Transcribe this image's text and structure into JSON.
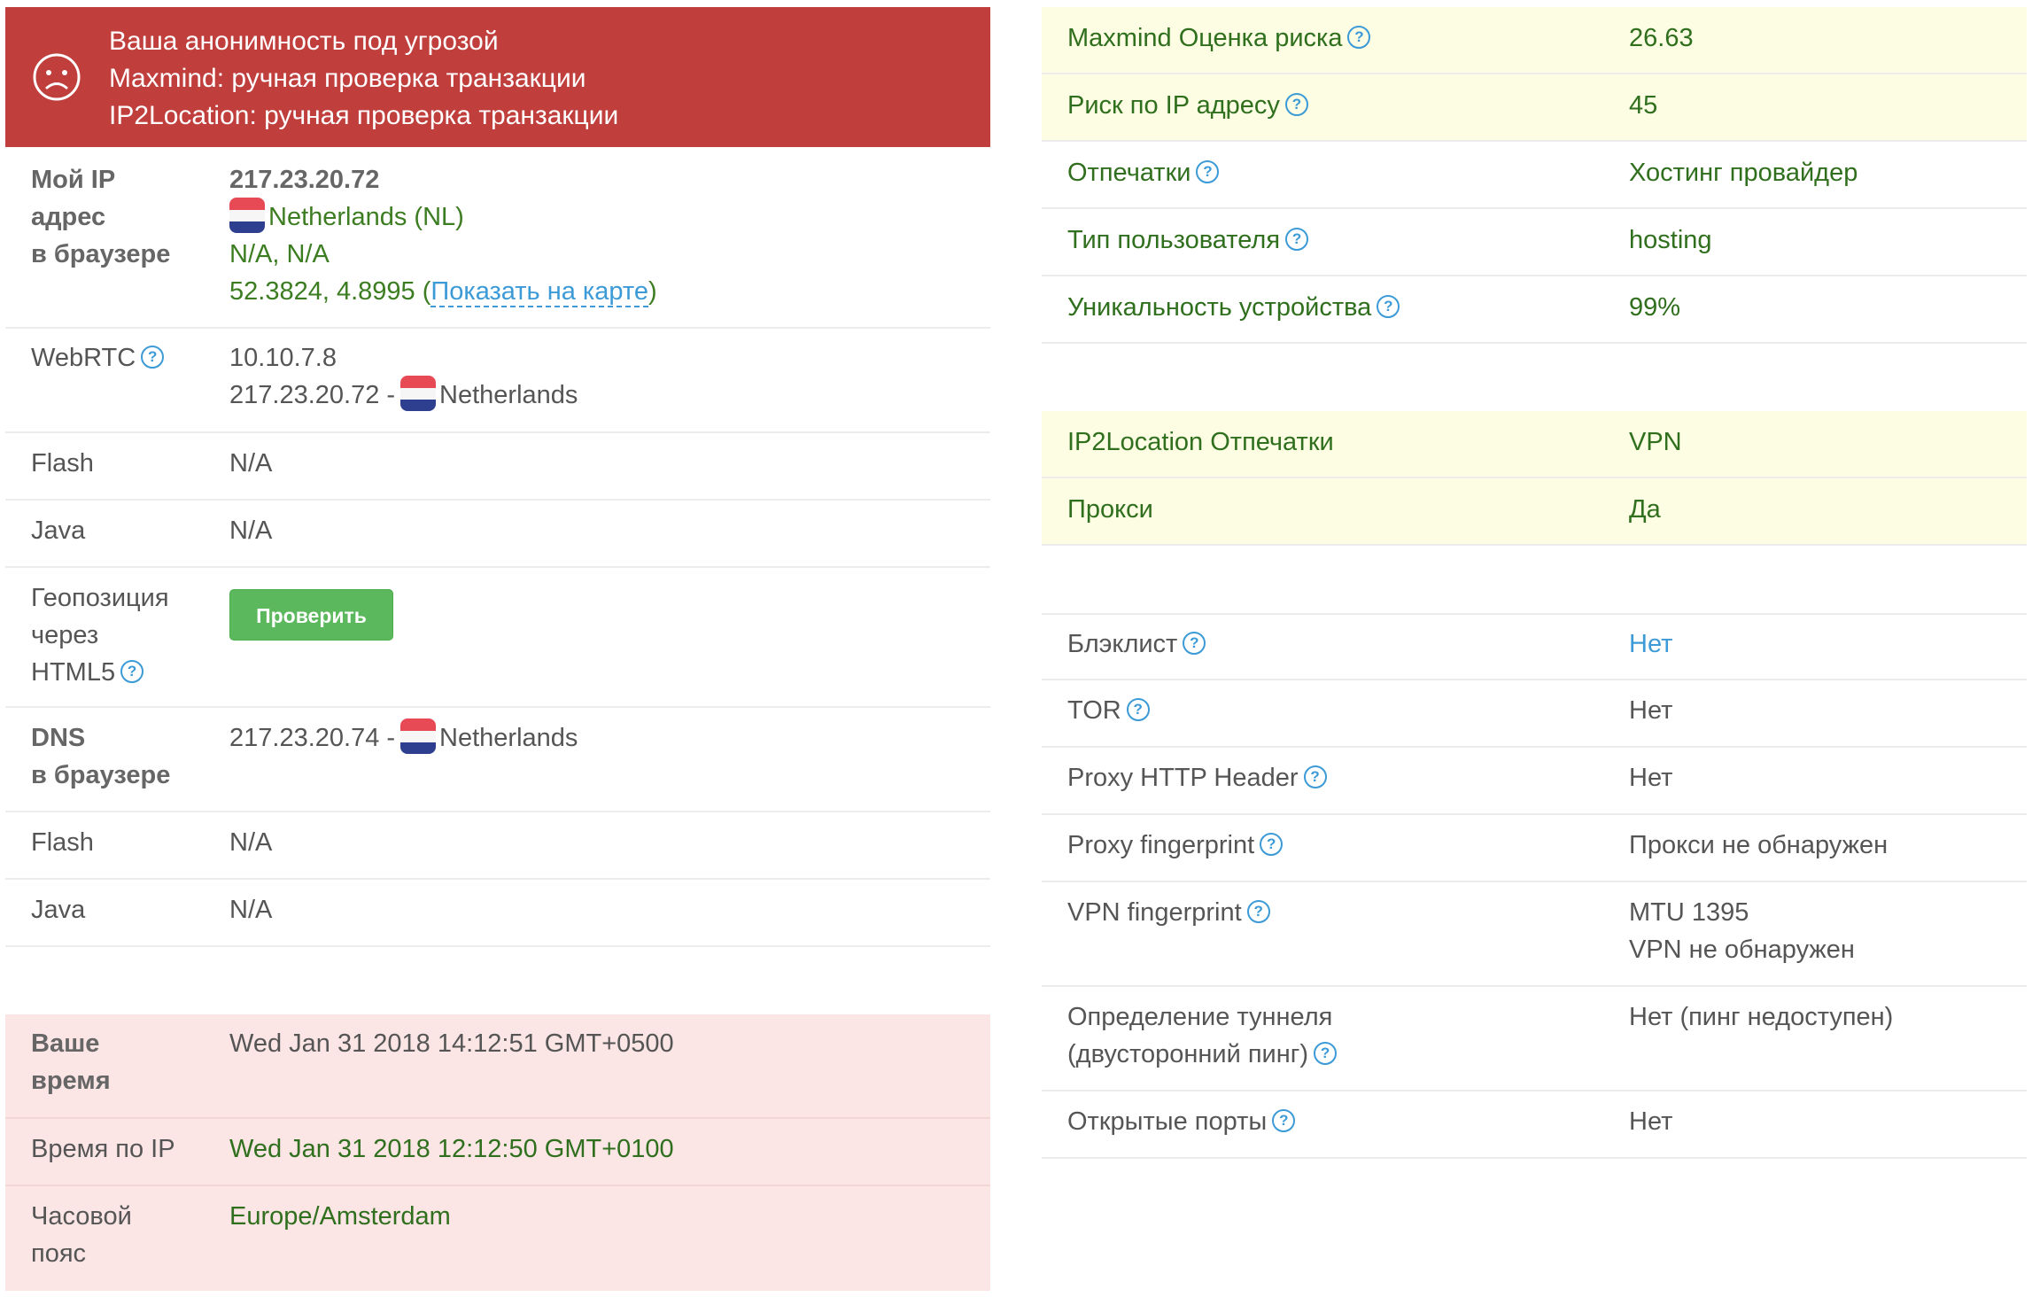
{
  "alert": {
    "line1": "Ваша анонимность под угрозой",
    "line2": "Maxmind: ручная проверка транзакции",
    "line3": "IP2Location: ручная проверка транзакции"
  },
  "ip_row": {
    "label": [
      "Мой IP",
      "адрес",
      "в браузере"
    ],
    "ip": "217.23.20.72",
    "country": "Netherlands (NL)",
    "region": "N/A, N/A",
    "coords": "52.3824, 4.8995",
    "map_link": "Показать на карте",
    "paren_open": "(",
    "paren_close": ")"
  },
  "webrtc": {
    "label": "WebRTC",
    "local_ip": "10.10.7.8",
    "public_ip": "217.23.20.72 -",
    "country": "Netherlands"
  },
  "flash1": {
    "label": "Flash",
    "value": "N/A"
  },
  "java1": {
    "label": "Java",
    "value": "N/A"
  },
  "geo": {
    "label": [
      "Геопозиция",
      "через",
      "HTML5"
    ],
    "button": "Проверить"
  },
  "dns": {
    "label": [
      "DNS",
      "в браузере"
    ],
    "ip": "217.23.20.74 -",
    "country": "Netherlands"
  },
  "flash2": {
    "label": "Flash",
    "value": "N/A"
  },
  "java2": {
    "label": "Java",
    "value": "N/A"
  },
  "time": {
    "your_time_label": [
      "Ваше",
      "время"
    ],
    "your_time": "Wed Jan 31 2018 14:12:51 GMT+0500",
    "ip_time_label": "Время по IP",
    "ip_time": "Wed Jan 31 2018 12:12:50 GMT+0100",
    "tz_label": [
      "Часовой",
      "пояс"
    ],
    "tz": "Europe/Amsterdam"
  },
  "right": {
    "maxmind_risk": {
      "label": "Maxmind Оценка риска",
      "value": "26.63"
    },
    "ip_risk": {
      "label": "Риск по IP адресу",
      "value": "45"
    },
    "fingerprints": {
      "label": "Отпечатки",
      "value": "Хостинг провайдер"
    },
    "user_type": {
      "label": "Тип пользователя",
      "value": "hosting"
    },
    "uniqueness": {
      "label": "Уникальность устройства",
      "value": "99%"
    },
    "ip2l_fp": {
      "label": "IP2Location Отпечатки",
      "value": "VPN"
    },
    "proxy": {
      "label": "Прокси",
      "value": "Да"
    },
    "blacklist": {
      "label": "Блэклист",
      "value": "Нет"
    },
    "tor": {
      "label": "TOR",
      "value": "Нет"
    },
    "proxy_header": {
      "label": "Proxy HTTP Header",
      "value": "Нет"
    },
    "proxy_fp": {
      "label": "Proxy fingerprint",
      "value": "Прокси не обнаружен"
    },
    "vpn_fp": {
      "label": "VPN fingerprint",
      "value1": "MTU 1395",
      "value2": "VPN не обнаружен"
    },
    "tunnel": {
      "label1": "Определение туннеля",
      "label2": "(двусторонний пинг)",
      "value": "Нет (пинг недоступен)"
    },
    "open_ports": {
      "label": "Открытые порты",
      "value": "Нет"
    }
  },
  "icons": {
    "help": "?",
    "sad_face": "sad-face-icon",
    "flag": "netherlands-flag"
  },
  "colors": {
    "alert": "#c03e3c",
    "highlight_yellow": "#fcfde3",
    "highlight_pink": "#fbe5e5",
    "link": "#3c9ad7",
    "ok_green": "#3c7d22",
    "button": "#5cb85c"
  }
}
